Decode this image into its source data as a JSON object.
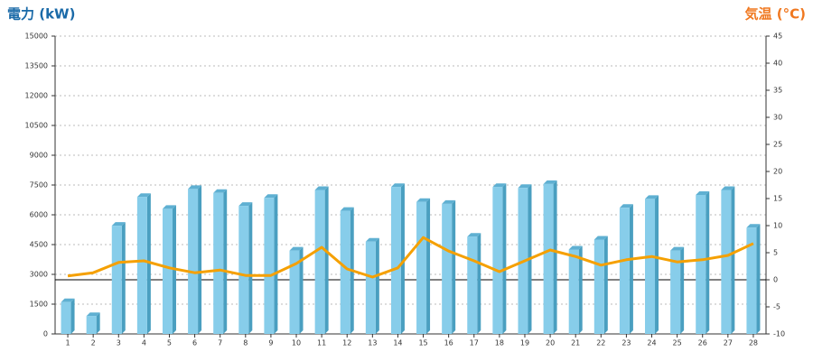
{
  "chart_data": {
    "type": "bar_line",
    "y_title": "電力 (kW)",
    "y2_title": "気温 (°C)",
    "categories": [
      "1",
      "2",
      "3",
      "4",
      "5",
      "6",
      "7",
      "8",
      "9",
      "10",
      "11",
      "12",
      "13",
      "14",
      "15",
      "16",
      "17",
      "18",
      "19",
      "20",
      "21",
      "22",
      "23",
      "24",
      "25",
      "26",
      "27",
      "28"
    ],
    "series": [
      {
        "type": "bar",
        "color": "#87cdea",
        "values": [
          1600,
          900,
          5450,
          6900,
          6300,
          7300,
          7100,
          6450,
          6850,
          4200,
          7250,
          6200,
          4650,
          7400,
          6650,
          6550,
          4900,
          7400,
          7350,
          7550,
          4250,
          4750,
          6350,
          6800,
          4200,
          7000,
          7250,
          5350
        ]
      },
      {
        "type": "line",
        "axis": "y2",
        "color": "#f5a000",
        "values": [
          0.7,
          1.3,
          3.2,
          3.5,
          2.2,
          1.3,
          1.8,
          0.8,
          0.8,
          3.0,
          6.0,
          2.0,
          0.5,
          2.2,
          7.8,
          5.3,
          3.5,
          1.5,
          3.5,
          5.5,
          4.3,
          2.7,
          3.7,
          4.3,
          3.3,
          3.7,
          4.5,
          6.7
        ]
      }
    ],
    "ylim": [
      0,
      15000
    ],
    "yticks": [
      0,
      1500,
      3000,
      4500,
      6000,
      7500,
      9000,
      10500,
      12000,
      13500,
      15000
    ],
    "y2lim": [
      -10,
      45
    ],
    "y2ticks": [
      -10,
      -5,
      0,
      5,
      10,
      15,
      20,
      25,
      30,
      35,
      40,
      45
    ],
    "grid": true,
    "y_title_color": "#1a6aa8",
    "y2_title_color": "#f07820"
  }
}
